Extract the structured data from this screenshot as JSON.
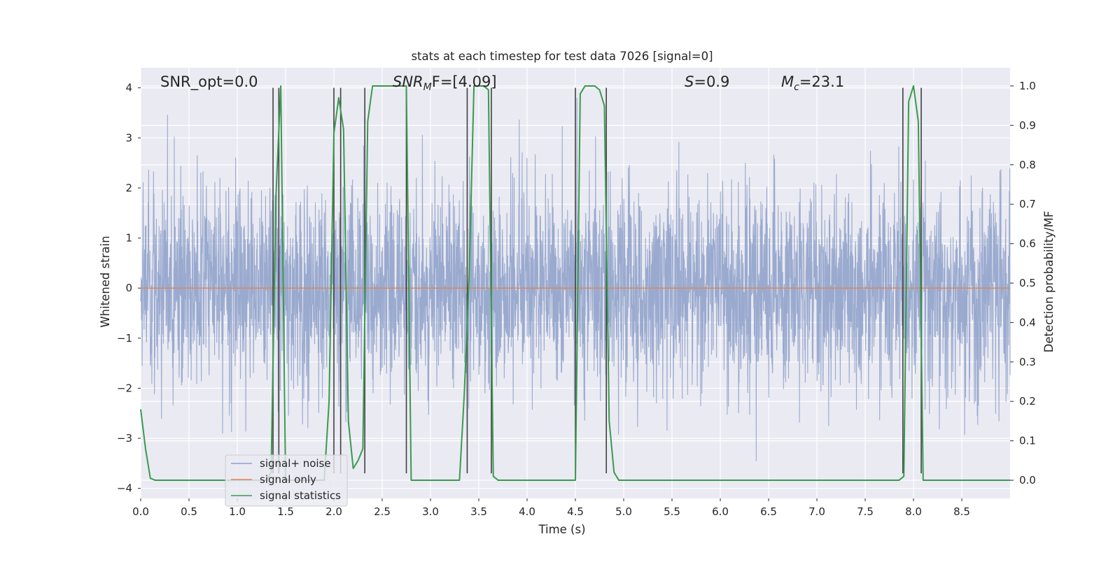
{
  "chart_data": {
    "type": "line",
    "title": "stats at each timestep for test data 7026 [signal=0]",
    "xlabel": "Time (s)",
    "ylabel_left": "Whitened strain",
    "ylabel_right": "Detection probability/MF",
    "xlim": [
      0,
      9.0
    ],
    "ylim_left": [
      -4.2,
      4.4
    ],
    "ylim_right": [
      -0.046,
      1.046
    ],
    "x_ticks": [
      "0.0",
      "0.5",
      "1.0",
      "1.5",
      "2.0",
      "2.5",
      "3.0",
      "3.5",
      "4.0",
      "4.5",
      "5.0",
      "5.5",
      "6.0",
      "6.5",
      "7.0",
      "7.5",
      "8.0",
      "8.5"
    ],
    "y_left_ticks": [
      "4",
      "3",
      "2",
      "1",
      "0",
      "−1",
      "−2",
      "−3",
      "−4"
    ],
    "y_right_ticks": [
      "1.0",
      "0.9",
      "0.8",
      "0.7",
      "0.6",
      "0.5",
      "0.4",
      "0.3",
      "0.2",
      "0.1",
      "0.0"
    ],
    "grid": true,
    "legend_placement": "lower-left",
    "annotations": {
      "snr_opt": "SNR_opt=0.0",
      "snr_mf_main": "SNR",
      "snr_mf_sub": "M",
      "snr_mf_rest": "F=[4.09]",
      "s_italic": "S",
      "s_value": "=0.9",
      "mc_italic": "M",
      "mc_sub": "c",
      "mc_value": "=23.1"
    },
    "series": [
      {
        "name": "signal+ noise",
        "axis": "left",
        "color": "#8c9fc9",
        "style": "dense noise band",
        "noise_std": 1.0,
        "approx_range": [
          -3.9,
          3.8
        ]
      },
      {
        "name": "signal only",
        "axis": "left",
        "color": "#dd8452",
        "x": [
          0,
          9.0
        ],
        "y": [
          0,
          0
        ]
      },
      {
        "name": "signal statistics",
        "axis": "right",
        "color": "#3a9a4e",
        "x": [
          0.0,
          0.05,
          0.1,
          0.15,
          0.2,
          1.3,
          1.35,
          1.4,
          1.45,
          1.5,
          1.55,
          1.9,
          1.95,
          2.0,
          2.05,
          2.1,
          2.15,
          2.2,
          2.25,
          2.3,
          2.35,
          2.4,
          2.45,
          2.5,
          2.75,
          2.8,
          2.85,
          3.3,
          3.35,
          3.4,
          3.45,
          3.5,
          3.55,
          3.6,
          3.65,
          3.7,
          3.75,
          4.5,
          4.55,
          4.6,
          4.65,
          4.7,
          4.75,
          4.8,
          4.85,
          4.9,
          4.95,
          5.0,
          5.05,
          7.85,
          7.9,
          7.95,
          8.0,
          8.05,
          8.1,
          8.15,
          8.2,
          9.0
        ],
        "y": [
          0.18,
          0.08,
          0.005,
          0.0,
          0.0,
          0.0,
          0.02,
          0.72,
          1.0,
          0.0,
          0.0,
          0.0,
          0.2,
          0.88,
          0.97,
          0.89,
          0.15,
          0.03,
          0.05,
          0.08,
          0.91,
          1.0,
          1.0,
          1.0,
          1.0,
          0.0,
          0.0,
          0.0,
          0.22,
          0.52,
          1.0,
          1.0,
          1.0,
          0.99,
          0.01,
          0.0,
          0.0,
          0.0,
          0.98,
          1.0,
          1.0,
          1.0,
          0.99,
          0.95,
          0.15,
          0.02,
          0.0,
          0.0,
          0.0,
          0.0,
          0.01,
          0.96,
          1.0,
          0.91,
          0.0,
          0.0,
          0.0,
          0.0
        ]
      }
    ],
    "vertical_markers": {
      "color": "#404040",
      "x": [
        1.37,
        1.43,
        2.0,
        2.07,
        2.32,
        2.75,
        3.38,
        3.63,
        4.5,
        4.82,
        7.89,
        8.08
      ],
      "y_range_left": [
        -3.7,
        4.0
      ]
    }
  }
}
